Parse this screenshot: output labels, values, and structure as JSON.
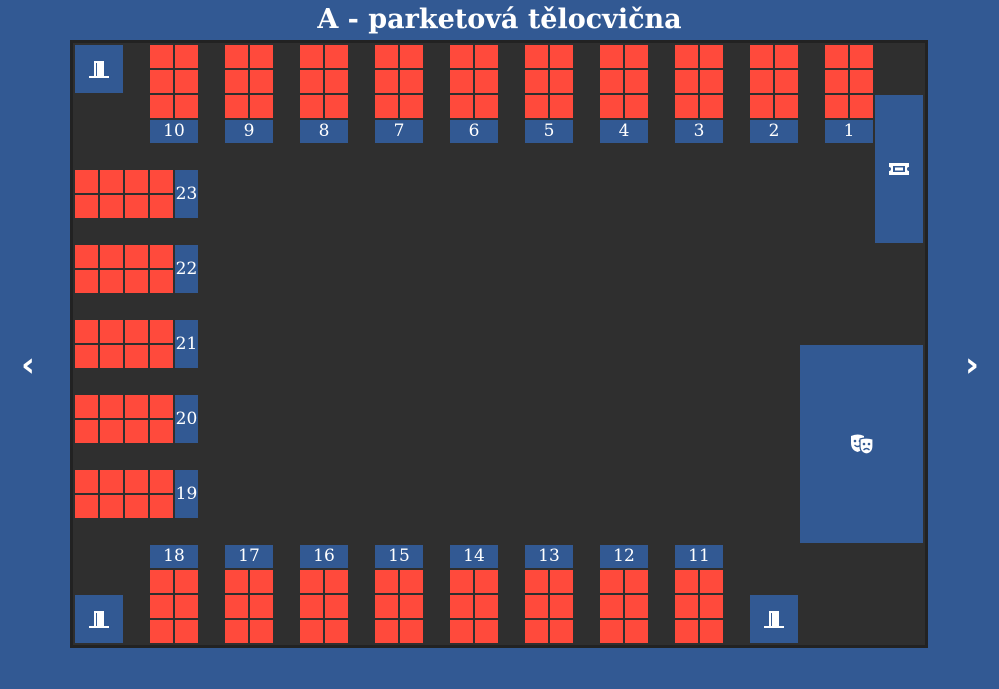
{
  "title": "A - parketová tělocvična",
  "nav": {
    "prev": "‹",
    "next": "›"
  },
  "colors": {
    "background": "#325993",
    "hall": "#2f2f2f",
    "seat_free": "#ff4a3c",
    "label": "#325993"
  },
  "icons": {
    "exits": [
      "door-exit-icon",
      "door-exit-icon",
      "door-exit-icon"
    ],
    "ticket": "ticket-icon",
    "stage": "theater-masks-icon"
  },
  "tables": {
    "top": [
      "10",
      "9",
      "8",
      "7",
      "6",
      "5",
      "4",
      "3",
      "2",
      "1"
    ],
    "bottom": [
      "18",
      "17",
      "16",
      "15",
      "14",
      "13",
      "12",
      "11"
    ],
    "left": [
      "23",
      "22",
      "21",
      "20",
      "19"
    ]
  }
}
